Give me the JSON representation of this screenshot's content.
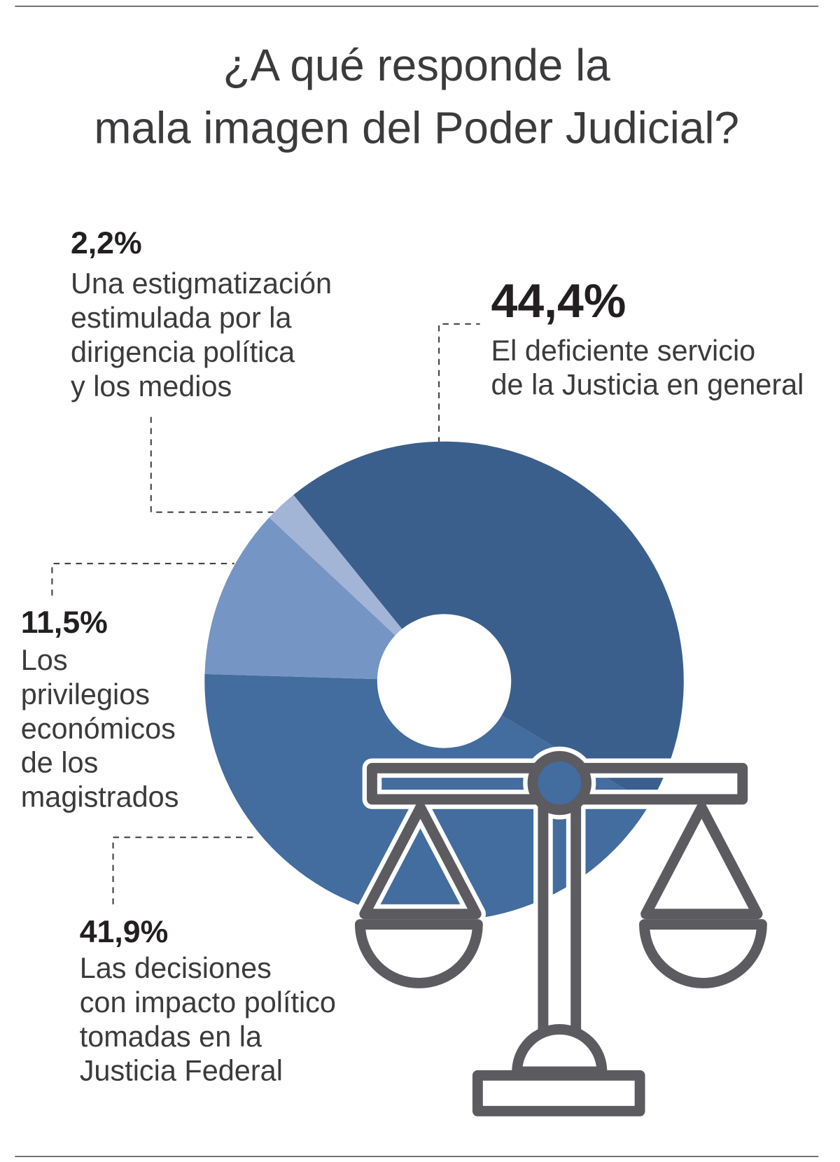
{
  "title": [
    "¿A qué responde la",
    "mala imagen del Poder Judicial?"
  ],
  "chart_data": {
    "type": "pie",
    "donut": true,
    "slices": [
      {
        "value": 44.4,
        "label": "44,4%",
        "text": [
          "El deficiente servicio",
          "de la Justicia en general"
        ],
        "color": "#3a5f8c"
      },
      {
        "value": 41.9,
        "label": "41,9%",
        "text": [
          "Las decisiones",
          "con impacto político",
          "tomadas en la",
          "Justicia Federal"
        ],
        "color": "#436c9f"
      },
      {
        "value": 11.5,
        "label": "11,5%",
        "text": [
          "Los",
          "privilegios",
          "económicos",
          "de los",
          "magistrados"
        ],
        "color": "#7595c5"
      },
      {
        "value": 2.2,
        "label": "2,2%",
        "text": [
          "Una estigmatización",
          "estimulada por la",
          "dirigencia política",
          "y los medios"
        ],
        "color": "#a3b5d6"
      }
    ],
    "highlight_color": "#3a5f8c",
    "icon": "scales-of-justice-icon",
    "icon_color": "#5b5b60"
  }
}
